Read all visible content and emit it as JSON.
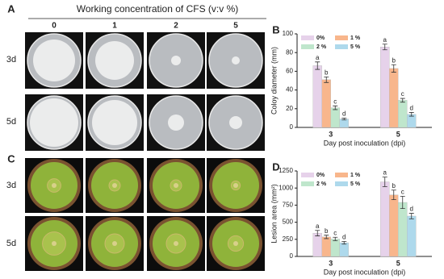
{
  "panel_a": {
    "label": "A",
    "title": "Working concentration of CFS (v:v %)",
    "columns": [
      "0",
      "1",
      "2",
      "5"
    ],
    "rows": [
      "3d",
      "5d"
    ]
  },
  "panel_c": {
    "label": "C",
    "rows": [
      "3d",
      "5d"
    ]
  },
  "chart_data": [
    {
      "type": "bar",
      "panel_label": "B",
      "xlabel": "Day post inoculation (dpi)",
      "ylabel": "Coloy diameter (mm)",
      "categories": [
        "3",
        "5"
      ],
      "ylim": [
        0,
        100
      ],
      "yticks": [
        0,
        20,
        40,
        60,
        80,
        100
      ],
      "series": [
        {
          "name": "0%",
          "color": "#e6d2ea",
          "values": [
            66,
            86
          ],
          "errors": [
            4,
            3
          ],
          "letters": [
            "a",
            "a"
          ]
        },
        {
          "name": "1 %",
          "color": "#f8b68c",
          "values": [
            51,
            63
          ],
          "errors": [
            3,
            4
          ],
          "letters": [
            "b",
            "b"
          ]
        },
        {
          "name": "2 %",
          "color": "#bfe6cc",
          "values": [
            21,
            29
          ],
          "errors": [
            2,
            2
          ],
          "letters": [
            "c",
            "c"
          ]
        },
        {
          "name": "5 %",
          "color": "#aed9ec",
          "values": [
            9,
            14
          ],
          "errors": [
            1,
            2
          ],
          "letters": [
            "d",
            "d"
          ]
        }
      ]
    },
    {
      "type": "bar",
      "panel_label": "D",
      "xlabel": "Day post inoculation (dpi)",
      "ylabel": "Lesion area (mm²)",
      "categories": [
        "3",
        "5"
      ],
      "ylim": [
        0,
        1250
      ],
      "yticks": [
        0,
        250,
        500,
        750,
        1000,
        1250
      ],
      "series": [
        {
          "name": "0%",
          "color": "#e6d2ea",
          "values": [
            340,
            1090
          ],
          "errors": [
            40,
            70
          ],
          "letters": [
            "a",
            "a"
          ]
        },
        {
          "name": "1 %",
          "color": "#f8b68c",
          "values": [
            285,
            900
          ],
          "errors": [
            25,
            70
          ],
          "letters": [
            "b",
            "b"
          ]
        },
        {
          "name": "2 %",
          "color": "#bfe6cc",
          "values": [
            255,
            790
          ],
          "errors": [
            25,
            90
          ],
          "letters": [
            "c",
            "c"
          ]
        },
        {
          "name": "5 %",
          "color": "#aed9ec",
          "values": [
            200,
            590
          ],
          "errors": [
            20,
            40
          ],
          "letters": [
            "d",
            "d"
          ]
        }
      ]
    }
  ]
}
